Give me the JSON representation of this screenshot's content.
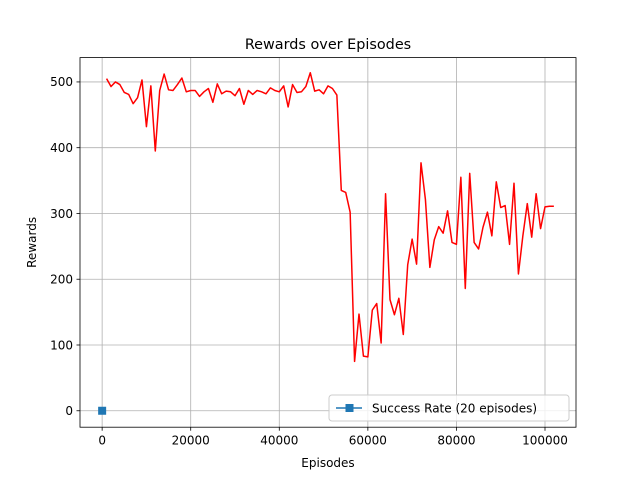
{
  "chart_data": {
    "type": "line",
    "title": "Rewards over Episodes",
    "xlabel": "Episodes",
    "ylabel": "Rewards",
    "xlim": [
      -5000,
      107000
    ],
    "ylim": [
      -25,
      537
    ],
    "xticks": [
      0,
      20000,
      40000,
      60000,
      80000,
      100000
    ],
    "xtick_labels": [
      "0",
      "20000",
      "40000",
      "60000",
      "80000",
      "100000"
    ],
    "yticks": [
      0,
      100,
      200,
      300,
      400,
      500
    ],
    "ytick_labels": [
      "0",
      "100",
      "200",
      "300",
      "400",
      "500"
    ],
    "grid": true,
    "legend_position": "lower-right",
    "colors": {
      "rewards": "#ff0000",
      "success_rate": "#1f77b4",
      "grid": "#b0b0b0"
    },
    "series": [
      {
        "key": "rewards",
        "x": [
          1000,
          2000,
          3000,
          4000,
          5000,
          6000,
          7000,
          8000,
          9000,
          10000,
          11000,
          12000,
          13000,
          14000,
          15000,
          16000,
          17000,
          18000,
          19000,
          20000,
          21000,
          22000,
          23000,
          24000,
          25000,
          26000,
          27000,
          28000,
          29000,
          30000,
          31000,
          32000,
          33000,
          34000,
          35000,
          36000,
          37000,
          38000,
          39000,
          40000,
          41000,
          42000,
          43000,
          44000,
          45000,
          46000,
          47000,
          48000,
          49000,
          50000,
          51000,
          52000,
          53000,
          54000,
          55000,
          56000,
          57000,
          58000,
          59000,
          60000,
          61000,
          62000,
          63000,
          64000,
          65000,
          66000,
          67000,
          68000,
          69000,
          70000,
          71000,
          72000,
          73000,
          74000,
          75000,
          76000,
          77000,
          78000,
          79000,
          80000,
          81000,
          82000,
          83000,
          84000,
          85000,
          86000,
          87000,
          88000,
          89000,
          90000,
          91000,
          92000,
          93000,
          94000,
          95000,
          96000,
          97000,
          98000,
          99000,
          100000,
          101000,
          102000
        ],
        "y": [
          505,
          493,
          500,
          496,
          484,
          481,
          467,
          476,
          503,
          432,
          494,
          395,
          487,
          512,
          488,
          487,
          496,
          506,
          485,
          487,
          487,
          478,
          485,
          490,
          469,
          497,
          482,
          486,
          485,
          479,
          490,
          466,
          487,
          481,
          487,
          485,
          482,
          491,
          487,
          485,
          494,
          462,
          496,
          484,
          485,
          493,
          514,
          486,
          488,
          482,
          494,
          490,
          480,
          335,
          332,
          302,
          75,
          147,
          83,
          82,
          153,
          163,
          103,
          330,
          169,
          146,
          171,
          116,
          222,
          261,
          223,
          377,
          321,
          218,
          260,
          280,
          270,
          304,
          256,
          253,
          355,
          186,
          361,
          256,
          246,
          279,
          302,
          266,
          348,
          309,
          312,
          253,
          346,
          208,
          266,
          315,
          264,
          330,
          277,
          310,
          311,
          311
        ]
      },
      {
        "key": "success_rate",
        "name": "Success Rate (20 episodes)",
        "x": [
          0
        ],
        "y": [
          0
        ]
      }
    ]
  }
}
